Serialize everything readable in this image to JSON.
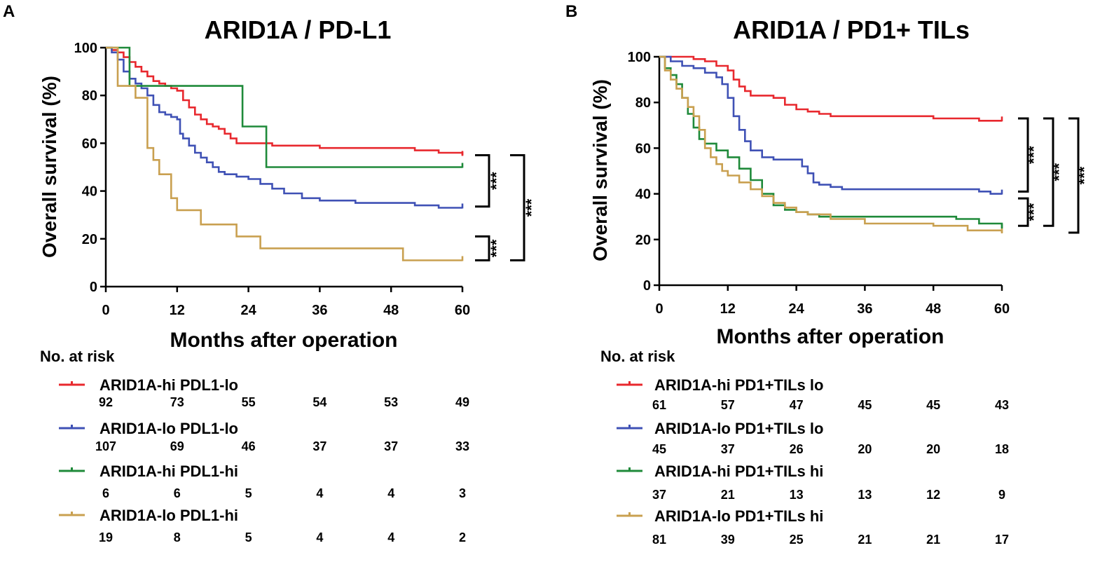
{
  "colors": {
    "axis": "#000000",
    "hi_lo_red": "#e8282e",
    "lo_lo_blue": "#3f51b5",
    "hi_hi_green": "#1f8a3a",
    "lo_hi_gold": "#c9a050"
  },
  "chart_data": [
    {
      "type": "line",
      "panel_letter": "A",
      "title": "ARID1A / PD-L1",
      "xlabel": "Months after operation",
      "ylabel": "Overall survival (%)",
      "xlim": [
        0,
        60
      ],
      "ylim": [
        0,
        100
      ],
      "x_ticks": [
        0,
        12,
        24,
        36,
        48,
        60
      ],
      "y_ticks": [
        0,
        20,
        40,
        60,
        80,
        100
      ],
      "risk_title": "No. at risk",
      "series": [
        {
          "name": "ARID1A-hi PDL1-lo",
          "color": "#e8282e",
          "points": [
            [
              0,
              100
            ],
            [
              1,
              99
            ],
            [
              2,
              98
            ],
            [
              3,
              96
            ],
            [
              4,
              94
            ],
            [
              5,
              92
            ],
            [
              6,
              90
            ],
            [
              7,
              88
            ],
            [
              8,
              86
            ],
            [
              9,
              85
            ],
            [
              10,
              84
            ],
            [
              11,
              83
            ],
            [
              12,
              82
            ],
            [
              13,
              78
            ],
            [
              14,
              75
            ],
            [
              15,
              72
            ],
            [
              16,
              70
            ],
            [
              17,
              68
            ],
            [
              18,
              67
            ],
            [
              19,
              66
            ],
            [
              20,
              64
            ],
            [
              21,
              62
            ],
            [
              22,
              60
            ],
            [
              24,
              60
            ],
            [
              26,
              60
            ],
            [
              28,
              59
            ],
            [
              30,
              59
            ],
            [
              36,
              58
            ],
            [
              44,
              58
            ],
            [
              52,
              57
            ],
            [
              56,
              56
            ],
            [
              60,
              55
            ]
          ],
          "at_risk": [
            "92",
            "73",
            "55",
            "54",
            "53",
            "49"
          ]
        },
        {
          "name": "ARID1A-lo PDL1-lo",
          "color": "#3f51b5",
          "points": [
            [
              0,
              100
            ],
            [
              1,
              98
            ],
            [
              2,
              95
            ],
            [
              3,
              90
            ],
            [
              4,
              87
            ],
            [
              5,
              85
            ],
            [
              6,
              83
            ],
            [
              7,
              80
            ],
            [
              8,
              76
            ],
            [
              9,
              73
            ],
            [
              10,
              72
            ],
            [
              11,
              71
            ],
            [
              12,
              70
            ],
            [
              12.5,
              64
            ],
            [
              13,
              62
            ],
            [
              14,
              59
            ],
            [
              15,
              56
            ],
            [
              16,
              54
            ],
            [
              17,
              52
            ],
            [
              18,
              50
            ],
            [
              19,
              48
            ],
            [
              20,
              47
            ],
            [
              22,
              46
            ],
            [
              24,
              45
            ],
            [
              26,
              43
            ],
            [
              28,
              41
            ],
            [
              30,
              39
            ],
            [
              33,
              37
            ],
            [
              36,
              36
            ],
            [
              42,
              35
            ],
            [
              48,
              35
            ],
            [
              52,
              34
            ],
            [
              56,
              33
            ],
            [
              60,
              33
            ]
          ],
          "at_risk": [
            "107",
            "69",
            "46",
            "37",
            "37",
            "33"
          ]
        },
        {
          "name": "ARID1A-hi PDL1-hi",
          "color": "#1f8a3a",
          "points": [
            [
              0,
              100
            ],
            [
              4,
              100
            ],
            [
              4,
              84
            ],
            [
              23,
              84
            ],
            [
              23,
              67
            ],
            [
              27,
              67
            ],
            [
              27,
              50
            ],
            [
              60,
              50
            ]
          ],
          "at_risk": [
            "6",
            "6",
            "5",
            "4",
            "4",
            "3"
          ]
        },
        {
          "name": "ARID1A-lo PDL1-hi",
          "color": "#c9a050",
          "points": [
            [
              0,
              100
            ],
            [
              2,
              100
            ],
            [
              2,
              84
            ],
            [
              5,
              84
            ],
            [
              5,
              79
            ],
            [
              7,
              79
            ],
            [
              7,
              58
            ],
            [
              8,
              58
            ],
            [
              8,
              53
            ],
            [
              9,
              53
            ],
            [
              9,
              47
            ],
            [
              11,
              47
            ],
            [
              11,
              37
            ],
            [
              12,
              37
            ],
            [
              12,
              32
            ],
            [
              16,
              32
            ],
            [
              16,
              26
            ],
            [
              22,
              26
            ],
            [
              22,
              21
            ],
            [
              26,
              21
            ],
            [
              26,
              16
            ],
            [
              50,
              16
            ],
            [
              50,
              11
            ],
            [
              60,
              11
            ]
          ],
          "at_risk": [
            "19",
            "8",
            "5",
            "4",
            "4",
            "2"
          ]
        }
      ],
      "significance": [
        "***",
        "***",
        "***"
      ]
    },
    {
      "type": "line",
      "panel_letter": "B",
      "title": "ARID1A / PD1+ TILs",
      "xlabel": "Months after operation",
      "ylabel": "Overall survival (%)",
      "xlim": [
        0,
        60
      ],
      "ylim": [
        0,
        100
      ],
      "x_ticks": [
        0,
        12,
        24,
        36,
        48,
        60
      ],
      "y_ticks": [
        0,
        20,
        40,
        60,
        80,
        100
      ],
      "risk_title": "No. at risk",
      "series": [
        {
          "name": "ARID1A-hi PD1+TILs lo",
          "color": "#e8282e",
          "points": [
            [
              0,
              100
            ],
            [
              4,
              100
            ],
            [
              6,
              99
            ],
            [
              8,
              98
            ],
            [
              10,
              96
            ],
            [
              12,
              94
            ],
            [
              13,
              90
            ],
            [
              14,
              87
            ],
            [
              15,
              85
            ],
            [
              16,
              83
            ],
            [
              20,
              82
            ],
            [
              22,
              79
            ],
            [
              24,
              77
            ],
            [
              26,
              76
            ],
            [
              28,
              75
            ],
            [
              30,
              74
            ],
            [
              36,
              74
            ],
            [
              46,
              74
            ],
            [
              48,
              73
            ],
            [
              56,
              72
            ],
            [
              60,
              72
            ]
          ],
          "at_risk": [
            "61",
            "57",
            "47",
            "45",
            "45",
            "43"
          ]
        },
        {
          "name": "ARID1A-lo PD1+TILs lo",
          "color": "#3f51b5",
          "points": [
            [
              0,
              100
            ],
            [
              2,
              98
            ],
            [
              4,
              96
            ],
            [
              6,
              95
            ],
            [
              8,
              93
            ],
            [
              10,
              91
            ],
            [
              11,
              88
            ],
            [
              12,
              82
            ],
            [
              13,
              74
            ],
            [
              14,
              68
            ],
            [
              15,
              63
            ],
            [
              16,
              59
            ],
            [
              18,
              56
            ],
            [
              20,
              55
            ],
            [
              24,
              55
            ],
            [
              25,
              52
            ],
            [
              26,
              49
            ],
            [
              27,
              45
            ],
            [
              28,
              44
            ],
            [
              30,
              43
            ],
            [
              32,
              42
            ],
            [
              36,
              42
            ],
            [
              48,
              42
            ],
            [
              56,
              41
            ],
            [
              58,
              40
            ],
            [
              60,
              40
            ]
          ],
          "at_risk": [
            "45",
            "37",
            "26",
            "20",
            "20",
            "18"
          ]
        },
        {
          "name": "ARID1A-hi PD1+TILs hi",
          "color": "#1f8a3a",
          "points": [
            [
              0,
              100
            ],
            [
              1,
              95
            ],
            [
              2,
              92
            ],
            [
              3,
              88
            ],
            [
              4,
              82
            ],
            [
              5,
              75
            ],
            [
              6,
              69
            ],
            [
              7,
              64
            ],
            [
              8,
              62
            ],
            [
              10,
              59
            ],
            [
              12,
              56
            ],
            [
              14,
              51
            ],
            [
              16,
              46
            ],
            [
              18,
              40
            ],
            [
              20,
              35
            ],
            [
              22,
              33
            ],
            [
              24,
              32
            ],
            [
              26,
              31
            ],
            [
              28,
              30
            ],
            [
              30,
              30
            ],
            [
              34,
              30
            ],
            [
              42,
              30
            ],
            [
              52,
              29
            ],
            [
              56,
              27
            ],
            [
              60,
              25
            ]
          ],
          "at_risk": [
            "37",
            "21",
            "13",
            "13",
            "12",
            "9"
          ]
        },
        {
          "name": "ARID1A-lo PD1+TILs hi",
          "color": "#c9a050",
          "points": [
            [
              0,
              100
            ],
            [
              1,
              94
            ],
            [
              2,
              90
            ],
            [
              3,
              86
            ],
            [
              4,
              82
            ],
            [
              5,
              78
            ],
            [
              6,
              74
            ],
            [
              7,
              68
            ],
            [
              8,
              60
            ],
            [
              9,
              56
            ],
            [
              10,
              53
            ],
            [
              11,
              50
            ],
            [
              12,
              48
            ],
            [
              14,
              45
            ],
            [
              16,
              42
            ],
            [
              18,
              39
            ],
            [
              20,
              36
            ],
            [
              22,
              34
            ],
            [
              24,
              32
            ],
            [
              26,
              31
            ],
            [
              30,
              29
            ],
            [
              36,
              27
            ],
            [
              44,
              27
            ],
            [
              48,
              26
            ],
            [
              54,
              24
            ],
            [
              60,
              23
            ]
          ],
          "at_risk": [
            "81",
            "39",
            "25",
            "21",
            "21",
            "17"
          ]
        }
      ],
      "significance": [
        "***",
        "***",
        "***",
        "***"
      ]
    }
  ]
}
